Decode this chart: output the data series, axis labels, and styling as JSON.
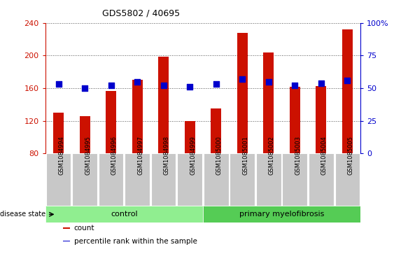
{
  "title": "GDS5802 / 40695",
  "samples": [
    "GSM1084994",
    "GSM1084995",
    "GSM1084996",
    "GSM1084997",
    "GSM1084998",
    "GSM1084999",
    "GSM1085000",
    "GSM1085001",
    "GSM1085002",
    "GSM1085003",
    "GSM1085004",
    "GSM1085005"
  ],
  "counts": [
    130,
    126,
    157,
    170,
    199,
    120,
    135,
    228,
    204,
    162,
    163,
    232
  ],
  "percentiles": [
    53,
    50,
    52,
    55,
    52,
    51,
    53,
    57,
    55,
    52,
    54,
    56
  ],
  "ymin": 80,
  "ymax": 240,
  "yticks_left": [
    80,
    120,
    160,
    200,
    240
  ],
  "yticks_right": [
    0,
    25,
    50,
    75,
    100
  ],
  "bar_color": "#cc1100",
  "dot_color": "#0000cc",
  "groups": [
    {
      "label": "control",
      "start": 0,
      "end": 6,
      "color": "#90ee90"
    },
    {
      "label": "primary myelofibrosis",
      "start": 6,
      "end": 12,
      "color": "#55cc55"
    }
  ],
  "legend_items": [
    {
      "color": "#cc1100",
      "label": "count"
    },
    {
      "color": "#0000cc",
      "label": "percentile rank within the sample"
    }
  ],
  "disease_state_label": "disease state",
  "bar_width": 0.4,
  "dot_size": 30,
  "label_box_color": "#c8c8c8",
  "title_fontsize": 9,
  "tick_fontsize": 8,
  "label_fontsize": 6,
  "group_fontsize": 8,
  "legend_fontsize": 7.5
}
